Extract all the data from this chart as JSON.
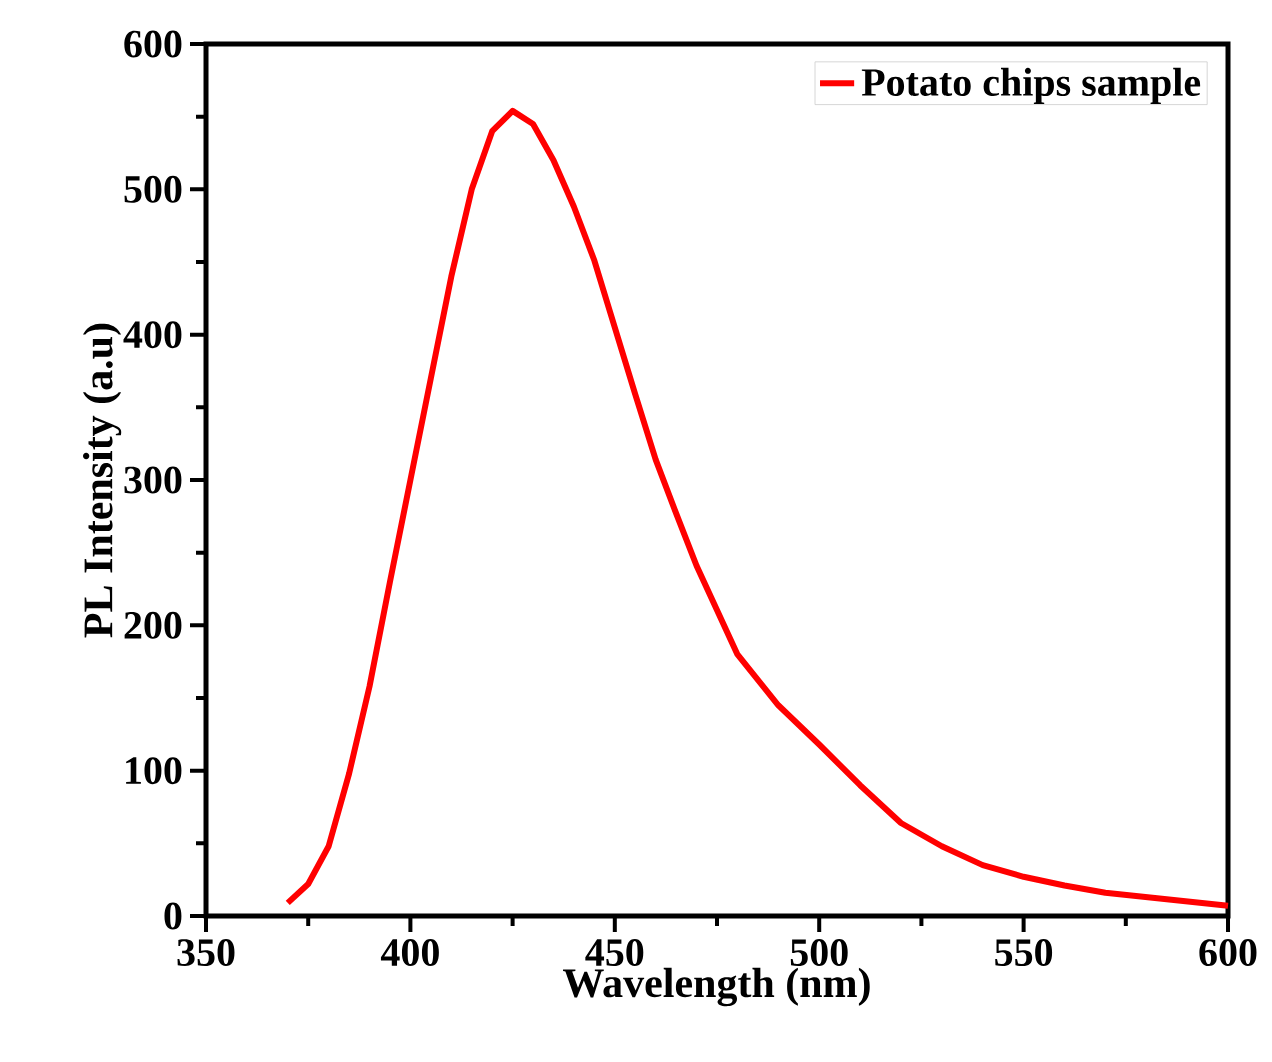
{
  "chart_data": {
    "type": "line",
    "xlabel": "Wavelength (nm)",
    "ylabel": "PL Intensity (a.u)",
    "xlim": [
      350,
      600
    ],
    "ylim": [
      0,
      600
    ],
    "xticks": [
      350,
      400,
      450,
      500,
      550,
      600
    ],
    "yticks": [
      0,
      100,
      200,
      300,
      400,
      500,
      600
    ],
    "legend": "top right",
    "marker": "none",
    "line_style": "solid",
    "grid": false,
    "x": [
      370,
      375,
      380,
      385,
      390,
      395,
      400,
      405,
      410,
      415,
      420,
      425,
      430,
      435,
      440,
      445,
      450,
      455,
      460,
      465,
      470,
      480,
      490,
      500,
      510,
      520,
      530,
      540,
      550,
      560,
      570,
      580,
      590,
      600
    ],
    "series": [
      {
        "name": "Potato chips sample",
        "color": "#ff0000",
        "values": [
          9,
          22,
          48,
          98,
          158,
          230,
          300,
          370,
          440,
          500,
          540,
          554,
          545,
          520,
          488,
          451,
          405,
          359,
          314,
          277,
          241,
          180,
          145,
          118,
          90,
          64,
          48,
          35,
          27,
          21,
          16,
          13,
          10,
          7
        ]
      }
    ]
  }
}
